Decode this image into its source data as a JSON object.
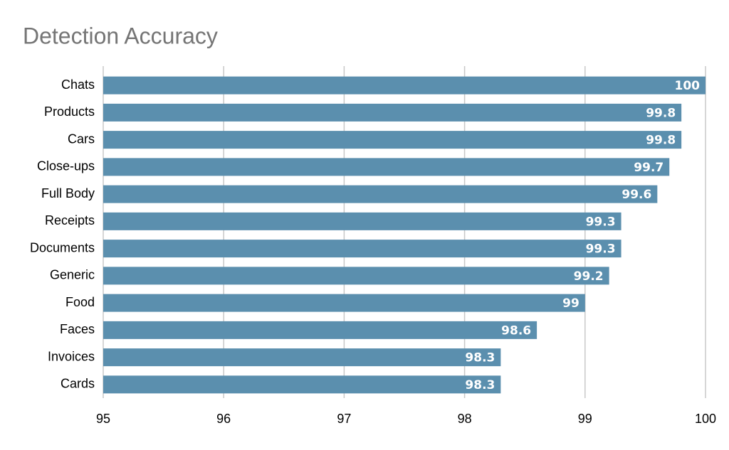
{
  "chart_data": {
    "type": "bar",
    "orientation": "horizontal",
    "title": "Detection Accuracy",
    "categories": [
      "Chats",
      "Products",
      "Cars",
      "Close-ups",
      "Full Body",
      "Receipts",
      "Documents",
      "Generic",
      "Food",
      "Faces",
      "Invoices",
      "Cards"
    ],
    "values": [
      100,
      99.8,
      99.8,
      99.7,
      99.6,
      99.3,
      99.3,
      99.2,
      99,
      98.6,
      98.3,
      98.3
    ],
    "color": "#5b8fae",
    "xlim": [
      95,
      100
    ],
    "xticks": [
      95,
      96,
      97,
      98,
      99,
      100
    ],
    "grid": true
  }
}
